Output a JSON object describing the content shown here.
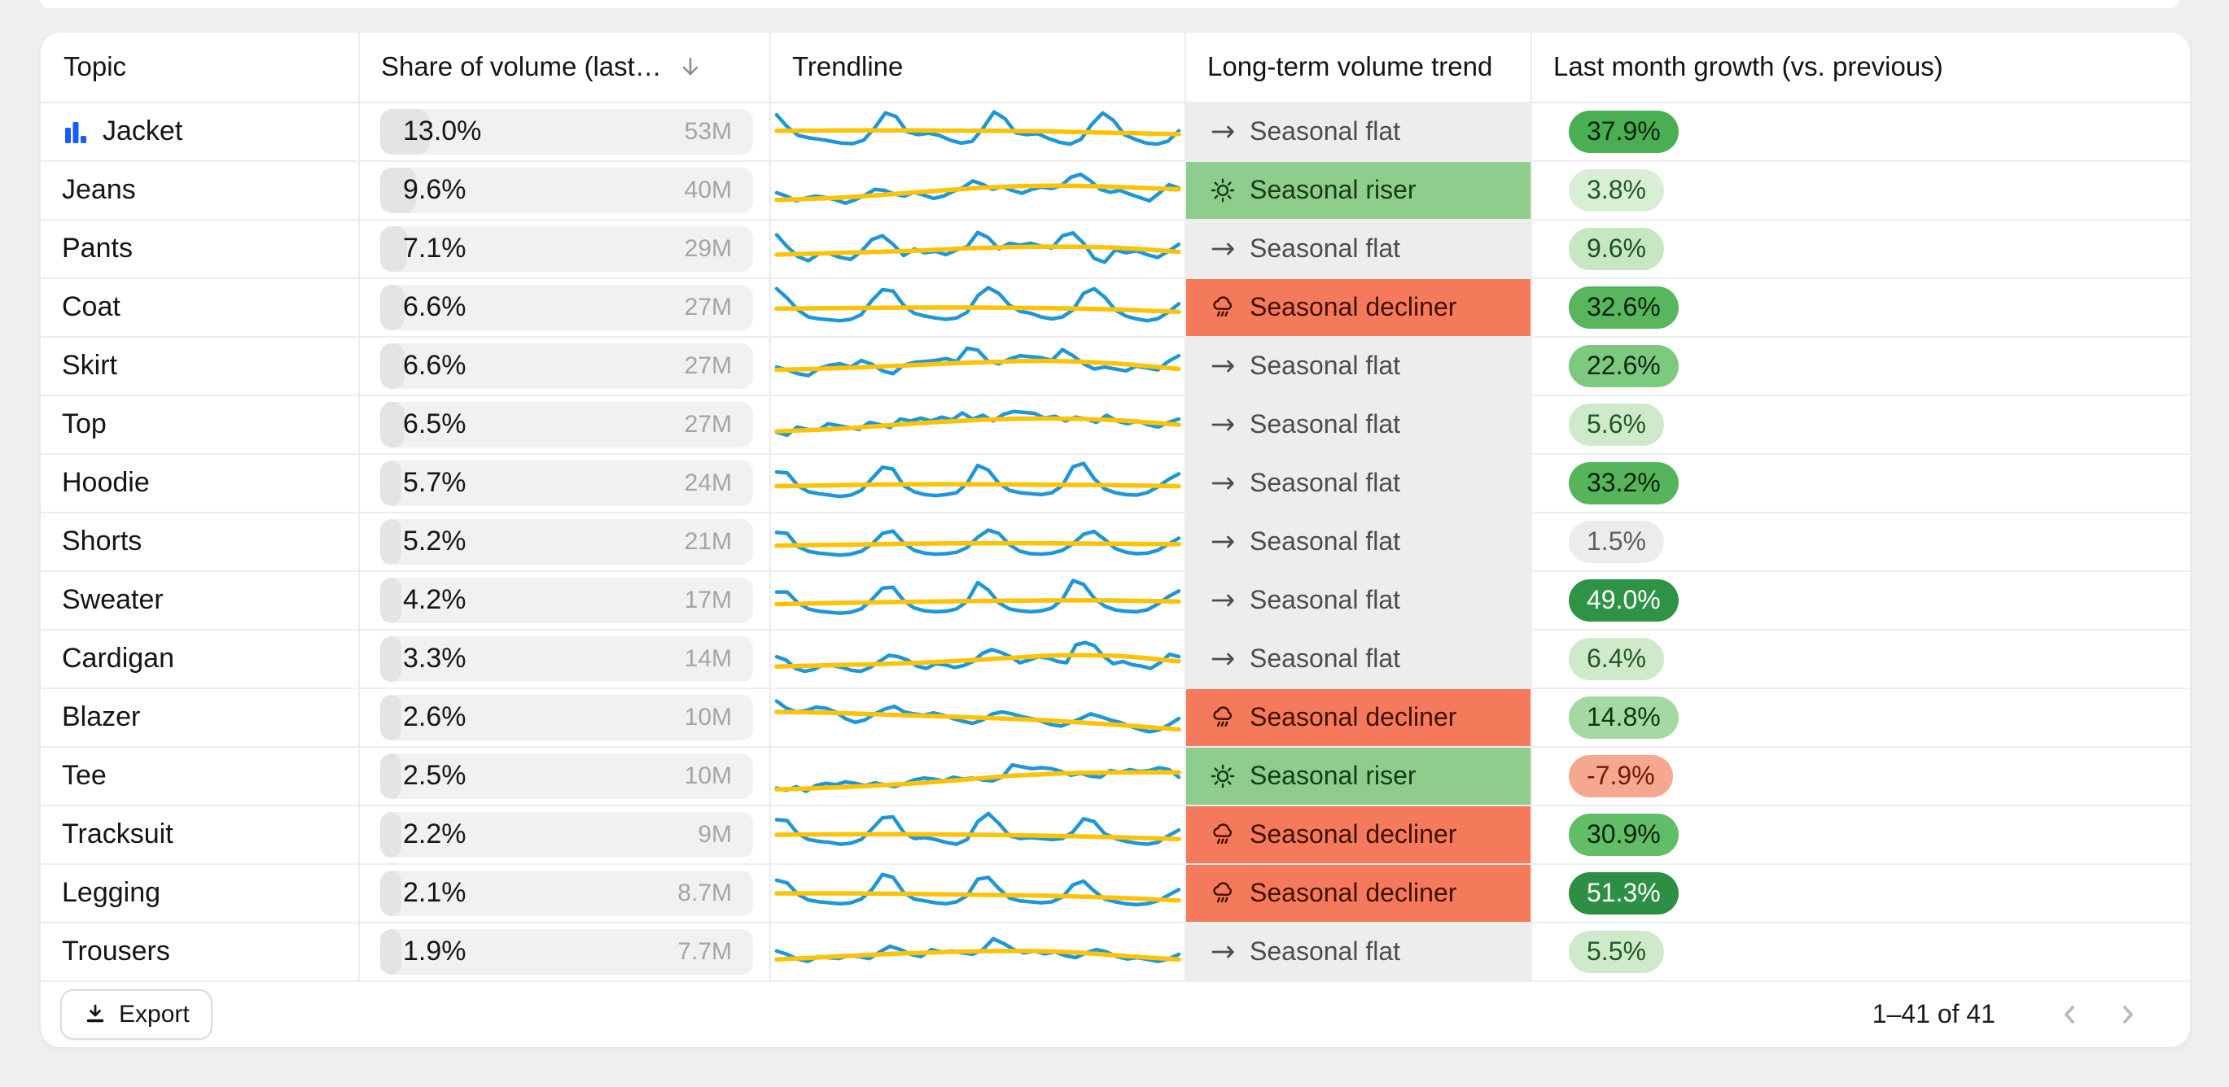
{
  "page": {
    "background": "#efeff0"
  },
  "colors": {
    "chart_icon_blue": "#1b5bf7",
    "sort_icon_gray": "#8c8c8c",
    "pager_icon_gray": "#b9b9b9",
    "row_divider": "#ececec"
  },
  "sparkline": {
    "line_color": "#1f97d6",
    "trend_color": "#fdc307"
  },
  "trend_styles": {
    "flat": {
      "bg": "#ededee",
      "fg": "#4c4c4c"
    },
    "riser": {
      "bg": "#8ecd8c",
      "fg": "#153c16"
    },
    "decliner": {
      "bg": "#f57a5c",
      "fg": "#3f1004"
    }
  },
  "table": {
    "columns": [
      {
        "label": "Topic"
      },
      {
        "label": "Share of volume (last…",
        "sorted": "desc"
      },
      {
        "label": "Trendline"
      },
      {
        "label": "Long-term volume trend"
      },
      {
        "label": "Last month growth (vs. previous)"
      }
    ],
    "rows": [
      {
        "topic": "Jacket",
        "chart_icon": true,
        "share": "13.0%",
        "share_fill": 13.0,
        "volume": "53M",
        "trend_type": "flat",
        "trend_label": "Seasonal flat",
        "growth": "37.9%",
        "growth_bg": "#4aaf53",
        "growth_fg": "#08230c",
        "spark_line": [
          86,
          60,
          42,
          37,
          34,
          30,
          26,
          25,
          32,
          58,
          90,
          82,
          50,
          44,
          47,
          42,
          32,
          26,
          30,
          58,
          92,
          78,
          48,
          44,
          46,
          36,
          28,
          24,
          34,
          66,
          90,
          74,
          44,
          34,
          26,
          24,
          30,
          52
        ],
        "spark_trend": [
          52,
          53,
          53,
          52,
          51,
          48,
          45
        ]
      },
      {
        "topic": "Jeans",
        "chart_icon": false,
        "share": "9.6%",
        "share_fill": 9.6,
        "volume": "40M",
        "trend_type": "riser",
        "trend_label": "Seasonal riser",
        "growth": "3.8%",
        "growth_bg": "#d9efd5",
        "growth_fg": "#225c28",
        "spark_line": [
          45,
          38,
          28,
          34,
          38,
          35,
          30,
          23,
          30,
          40,
          52,
          50,
          42,
          38,
          46,
          40,
          33,
          38,
          48,
          56,
          70,
          63,
          52,
          58,
          50,
          44,
          52,
          57,
          54,
          60,
          78,
          84,
          70,
          52,
          46,
          50,
          42,
          35,
          28,
          44,
          62,
          55
        ],
        "spark_trend": [
          30,
          34,
          42,
          51,
          58,
          60,
          57,
          52
        ]
      },
      {
        "topic": "Pants",
        "chart_icon": false,
        "share": "7.1%",
        "share_fill": 7.1,
        "volume": "29M",
        "trend_type": "flat",
        "trend_label": "Seasonal flat",
        "growth": "9.6%",
        "growth_bg": "#c6e7c2",
        "growth_fg": "#1e5222",
        "spark_line": [
          80,
          55,
          34,
          25,
          40,
          40,
          32,
          28,
          45,
          70,
          78,
          60,
          36,
          50,
          42,
          45,
          38,
          48,
          55,
          85,
          74,
          50,
          62,
          58,
          62,
          56,
          52,
          78,
          84,
          62,
          30,
          22,
          48,
          42,
          46,
          38,
          32,
          45,
          60
        ],
        "spark_trend": [
          38,
          42,
          46,
          52,
          55,
          53,
          44
        ]
      },
      {
        "topic": "Coat",
        "chart_icon": false,
        "share": "6.6%",
        "share_fill": 6.6,
        "volume": "27M",
        "trend_type": "decliner",
        "trend_label": "Seasonal decliner",
        "growth": "32.6%",
        "growth_bg": "#58b65d",
        "growth_fg": "#082108",
        "spark_line": [
          90,
          70,
          45,
          30,
          26,
          24,
          22,
          25,
          35,
          65,
          88,
          85,
          55,
          38,
          32,
          28,
          25,
          28,
          40,
          75,
          92,
          80,
          55,
          42,
          38,
          30,
          26,
          30,
          45,
          80,
          90,
          72,
          45,
          32,
          26,
          22,
          26,
          40,
          58
        ],
        "spark_trend": [
          48,
          49,
          50,
          50,
          49,
          46,
          41
        ]
      },
      {
        "topic": "Skirt",
        "chart_icon": false,
        "share": "6.6%",
        "share_fill": 6.6,
        "volume": "27M",
        "trend_type": "flat",
        "trend_label": "Seasonal flat",
        "growth": "22.6%",
        "growth_bg": "#7cc980",
        "growth_fg": "#0a250c",
        "spark_line": [
          48,
          42,
          34,
          30,
          45,
          52,
          55,
          48,
          62,
          54,
          40,
          34,
          52,
          58,
          60,
          62,
          66,
          60,
          88,
          84,
          60,
          55,
          65,
          72,
          70,
          68,
          62,
          85,
          72,
          55,
          44,
          48,
          44,
          40,
          50,
          46,
          42,
          60,
          72
        ],
        "spark_trend": [
          42,
          46,
          52,
          58,
          61,
          56,
          44
        ]
      },
      {
        "topic": "Top",
        "chart_icon": false,
        "share": "6.5%",
        "share_fill": 6.5,
        "volume": "27M",
        "trend_type": "flat",
        "trend_label": "Seasonal flat",
        "growth": "5.6%",
        "growth_bg": "#cfeaca",
        "growth_fg": "#215827",
        "spark_line": [
          34,
          28,
          45,
          40,
          38,
          52,
          48,
          44,
          40,
          55,
          50,
          44,
          62,
          58,
          64,
          58,
          66,
          60,
          75,
          62,
          70,
          58,
          72,
          78,
          76,
          74,
          64,
          68,
          58,
          66,
          62,
          55,
          70,
          58,
          52,
          58,
          50,
          45,
          55,
          62
        ],
        "spark_trend": [
          36,
          42,
          52,
          60,
          63,
          60,
          50
        ]
      },
      {
        "topic": "Hoodie",
        "chart_icon": false,
        "share": "5.7%",
        "share_fill": 5.7,
        "volume": "24M",
        "trend_type": "flat",
        "trend_label": "Seasonal flat",
        "growth": "33.2%",
        "growth_bg": "#56b55b",
        "growth_fg": "#082108",
        "spark_line": [
          74,
          72,
          45,
          32,
          28,
          25,
          22,
          25,
          35,
          60,
          84,
          80,
          45,
          32,
          26,
          24,
          26,
          30,
          50,
          88,
          78,
          50,
          35,
          30,
          28,
          26,
          30,
          45,
          85,
          92,
          60,
          38,
          30,
          26,
          25,
          30,
          42,
          58,
          70
        ],
        "spark_trend": [
          44,
          46,
          48,
          48,
          47,
          46,
          44
        ]
      },
      {
        "topic": "Shorts",
        "chart_icon": false,
        "share": "5.2%",
        "share_fill": 5.2,
        "volume": "21M",
        "trend_type": "flat",
        "trend_label": "Seasonal flat",
        "growth": "1.5%",
        "growth_bg": "#ececec",
        "growth_fg": "#5f5f5f",
        "spark_line": [
          70,
          68,
          40,
          30,
          26,
          24,
          22,
          24,
          30,
          45,
          68,
          73,
          48,
          32,
          26,
          24,
          25,
          28,
          38,
          60,
          75,
          68,
          44,
          30,
          25,
          24,
          26,
          32,
          46,
          66,
          72,
          55,
          36,
          28,
          25,
          26,
          32,
          45,
          58
        ],
        "spark_trend": [
          42,
          44,
          46,
          47,
          47,
          46,
          45
        ]
      },
      {
        "topic": "Sweater",
        "chart_icon": false,
        "share": "4.2%",
        "share_fill": 4.2,
        "volume": "17M",
        "trend_type": "flat",
        "trend_label": "Seasonal flat",
        "growth": "49.0%",
        "growth_bg": "#2f9346",
        "growth_fg": "#ffffff",
        "spark_line": [
          68,
          68,
          45,
          32,
          27,
          25,
          23,
          25,
          32,
          52,
          76,
          78,
          50,
          34,
          28,
          26,
          27,
          32,
          48,
          88,
          72,
          45,
          32,
          28,
          26,
          28,
          34,
          52,
          92,
          84,
          55,
          38,
          30,
          27,
          26,
          30,
          42,
          58,
          70
        ],
        "spark_trend": [
          42,
          45,
          47,
          49,
          50,
          50,
          48
        ]
      },
      {
        "topic": "Cardigan",
        "chart_icon": false,
        "share": "3.3%",
        "share_fill": 3.3,
        "volume": "14M",
        "trend_type": "flat",
        "trend_label": "Seasonal flat",
        "growth": "6.4%",
        "growth_bg": "#cfeaca",
        "growth_fg": "#215827",
        "spark_line": [
          55,
          48,
          30,
          24,
          28,
          38,
          36,
          32,
          26,
          24,
          32,
          45,
          58,
          55,
          48,
          35,
          30,
          40,
          38,
          32,
          36,
          45,
          62,
          70,
          64,
          55,
          42,
          48,
          55,
          52,
          45,
          42,
          80,
          85,
          78,
          55,
          40,
          45,
          38,
          35,
          30,
          42,
          60,
          55
        ],
        "spark_trend": [
          34,
          37,
          40,
          45,
          52,
          58,
          56,
          45
        ]
      },
      {
        "topic": "Blazer",
        "chart_icon": false,
        "share": "2.6%",
        "share_fill": 2.6,
        "volume": "10M",
        "trend_type": "decliner",
        "trend_label": "Seasonal decliner",
        "growth": "14.8%",
        "growth_bg": "#a4d9a2",
        "growth_fg": "#113413",
        "spark_line": [
          85,
          70,
          62,
          65,
          72,
          70,
          62,
          48,
          40,
          45,
          58,
          68,
          74,
          62,
          58,
          55,
          60,
          55,
          48,
          42,
          38,
          45,
          58,
          62,
          58,
          52,
          48,
          42,
          35,
          32,
          40,
          48,
          58,
          52,
          45,
          40,
          32,
          25,
          20,
          24,
          35,
          48
        ],
        "spark_trend": [
          62,
          60,
          56,
          52,
          48,
          42,
          34,
          25
        ]
      },
      {
        "topic": "Tee",
        "chart_icon": false,
        "share": "2.5%",
        "share_fill": 2.5,
        "volume": "10M",
        "trend_type": "riser",
        "trend_label": "Seasonal riser",
        "growth": "-7.9%",
        "growth_bg": "#f6a78f",
        "growth_fg": "#6d1b06",
        "spark_line": [
          25,
          20,
          28,
          18,
          30,
          35,
          32,
          38,
          35,
          30,
          36,
          32,
          28,
          34,
          42,
          46,
          44,
          40,
          48,
          44,
          46,
          42,
          40,
          48,
          74,
          70,
          66,
          68,
          66,
          60,
          52,
          56,
          50,
          48,
          62,
          58,
          64,
          60,
          62,
          68,
          64,
          48
        ],
        "spark_trend": [
          22,
          26,
          32,
          40,
          50,
          56,
          58,
          58
        ]
      },
      {
        "topic": "Tracksuit",
        "chart_icon": false,
        "share": "2.2%",
        "share_fill": 2.2,
        "volume": "9M",
        "trend_type": "decliner",
        "trend_label": "Seasonal decliner",
        "growth": "30.9%",
        "growth_bg": "#61bd66",
        "growth_fg": "#082108",
        "spark_line": [
          82,
          80,
          52,
          40,
          36,
          34,
          30,
          32,
          40,
          62,
          86,
          88,
          55,
          42,
          44,
          40,
          34,
          30,
          40,
          78,
          95,
          74,
          48,
          42,
          44,
          42,
          40,
          42,
          56,
          84,
          78,
          52,
          42,
          36,
          32,
          30,
          34,
          48,
          60
        ],
        "spark_trend": [
          50,
          51,
          51,
          50,
          48,
          45,
          41
        ]
      },
      {
        "topic": "Legging",
        "chart_icon": false,
        "share": "2.1%",
        "share_fill": 2.1,
        "volume": "8.7M",
        "trend_type": "decliner",
        "trend_label": "Seasonal decliner",
        "growth": "51.3%",
        "growth_bg": "#2c8f43",
        "growth_fg": "#ffffff",
        "spark_line": [
          78,
          72,
          48,
          36,
          32,
          30,
          28,
          30,
          38,
          58,
          90,
          84,
          52,
          38,
          34,
          30,
          28,
          32,
          45,
          80,
          84,
          60,
          40,
          34,
          32,
          30,
          32,
          42,
          68,
          76,
          55,
          38,
          32,
          28,
          26,
          28,
          34,
          46,
          58
        ],
        "spark_trend": [
          50,
          50,
          49,
          47,
          45,
          41,
          35
        ]
      },
      {
        "topic": "Trousers",
        "chart_icon": false,
        "share": "1.9%",
        "share_fill": 1.9,
        "volume": "7.7M",
        "trend_type": "flat",
        "trend_label": "Seasonal flat",
        "growth": "5.5%",
        "growth_bg": "#cfeaca",
        "growth_fg": "#215827",
        "spark_line": [
          52,
          45,
          35,
          30,
          40,
          38,
          36,
          42,
          40,
          36,
          50,
          62,
          55,
          45,
          40,
          55,
          50,
          52,
          48,
          45,
          55,
          78,
          68,
          55,
          48,
          52,
          46,
          50,
          42,
          38,
          48,
          55,
          50,
          40,
          35,
          38,
          34,
          30,
          35,
          45
        ],
        "spark_trend": [
          34,
          40,
          46,
          50,
          52,
          50,
          42,
          34
        ]
      }
    ],
    "footer": {
      "export_label": "Export",
      "range_label": "1–41 of 41"
    }
  }
}
